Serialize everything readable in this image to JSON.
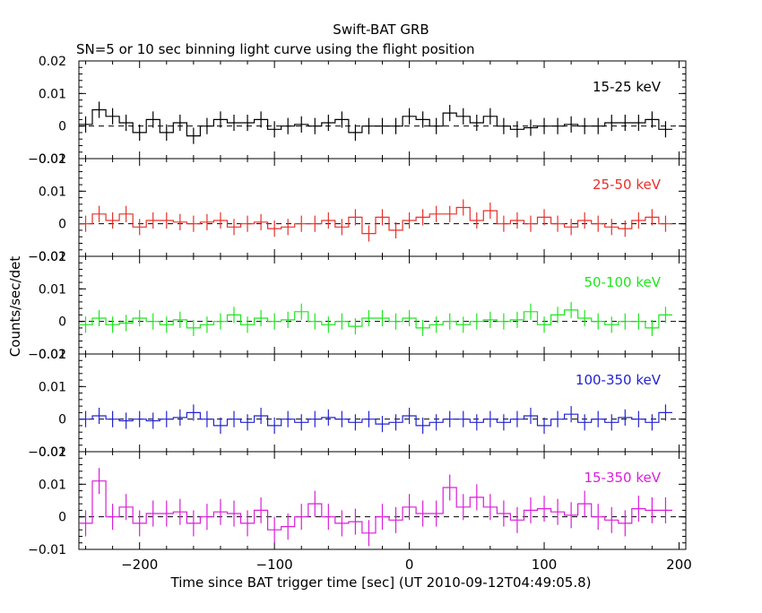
{
  "title": "Swift-BAT GRB",
  "subtitle": "SN=5 or 10 sec binning light curve using the flight position",
  "xlabel": "Time since BAT trigger time [sec] (UT 2010-09-12T04:49:05.8)",
  "ylabel": "Counts/sec/det",
  "chart_data": {
    "type": "line",
    "title": "Swift-BAT GRB",
    "subtitle": "SN=5 or 10 sec binning light curve using the flight position",
    "xlabel": "Time since BAT trigger time [sec] (UT 2010-09-12T04:49:05.8)",
    "ylabel": "Counts/sec/det",
    "xlim": [
      -245,
      205
    ],
    "x_ticks": [
      -200,
      -100,
      0,
      100,
      200
    ],
    "bin_width": 10,
    "x": [
      -240,
      -230,
      -220,
      -210,
      -200,
      -190,
      -180,
      -170,
      -160,
      -150,
      -140,
      -130,
      -120,
      -110,
      -100,
      -90,
      -80,
      -70,
      -60,
      -50,
      -40,
      -30,
      -20,
      -10,
      0,
      10,
      20,
      30,
      40,
      50,
      60,
      70,
      80,
      90,
      100,
      110,
      120,
      130,
      140,
      150,
      160,
      170,
      180,
      190
    ],
    "legend_position": "top-right",
    "baseline": 0,
    "series": [
      {
        "name": "15-25 keV",
        "color": "#000000",
        "ylim": [
          -0.01,
          0.02
        ],
        "y_ticks": [
          -0.01,
          0,
          0.01,
          0.02
        ],
        "y_tick_labels": [
          "−0.01",
          "0",
          "0.01",
          "0.02"
        ],
        "values": [
          0.0005,
          0.005,
          0.003,
          0.001,
          -0.002,
          0.002,
          -0.002,
          0.001,
          -0.003,
          0.0,
          0.002,
          0.001,
          0.001,
          0.002,
          -0.001,
          0.0,
          0.0005,
          0.0,
          0.001,
          0.002,
          -0.002,
          0.0,
          0.0,
          0.0,
          0.003,
          0.002,
          0.0,
          0.004,
          0.003,
          0.001,
          0.003,
          0.0,
          -0.001,
          -0.0005,
          0.0,
          0.0,
          0.0005,
          0.0,
          0.0,
          0.001,
          0.001,
          0.001,
          0.002,
          -0.001
        ],
        "error": 0.0025
      },
      {
        "name": "25-50 keV",
        "color": "#e8302a",
        "ylim": [
          -0.01,
          0.02
        ],
        "y_ticks": [
          -0.01,
          0,
          0.01,
          0.02
        ],
        "y_tick_labels": [
          "−0.01",
          "0",
          "0.01",
          "0.02"
        ],
        "values": [
          0.0,
          0.003,
          0.001,
          0.003,
          -0.001,
          0.001,
          0.001,
          0.0005,
          0.0,
          0.0005,
          0.001,
          -0.001,
          0.0,
          0.0005,
          -0.0015,
          -0.001,
          0.0,
          0.0,
          0.001,
          -0.001,
          0.002,
          -0.003,
          0.002,
          -0.002,
          0.001,
          0.002,
          0.003,
          0.003,
          0.005,
          0.001,
          0.004,
          0.0,
          0.001,
          0.0,
          0.002,
          0.0,
          -0.001,
          0.001,
          0.0,
          -0.001,
          -0.0015,
          0.001,
          0.002,
          0.0
        ],
        "error": 0.0025
      },
      {
        "name": "50-100 keV",
        "color": "#1ee61e",
        "ylim": [
          -0.01,
          0.02
        ],
        "y_ticks": [
          -0.01,
          0,
          0.01,
          0.02
        ],
        "y_tick_labels": [
          "−0.01",
          "0",
          "0.01",
          "0.02"
        ],
        "values": [
          -0.001,
          0.001,
          -0.001,
          -0.0005,
          0.001,
          0.0,
          -0.001,
          0.0005,
          -0.002,
          -0.001,
          0.0,
          0.002,
          -0.001,
          0.001,
          0.0,
          0.0005,
          0.003,
          0.0,
          -0.001,
          0.0,
          -0.0015,
          0.001,
          0.001,
          0.0,
          0.001,
          -0.002,
          -0.001,
          0.0,
          -0.001,
          0.0,
          0.0005,
          0.0,
          0.0005,
          0.003,
          -0.001,
          0.002,
          0.0035,
          0.001,
          0.0,
          -0.001,
          0.0,
          0.0,
          -0.002,
          0.002
        ],
        "error": 0.0025
      },
      {
        "name": "100-350 keV",
        "color": "#2323d2",
        "ylim": [
          -0.01,
          0.02
        ],
        "y_ticks": [
          -0.01,
          0,
          0.01,
          0.02
        ],
        "y_tick_labels": [
          "−0.01",
          "0",
          "0.01",
          "0.02"
        ],
        "values": [
          0.0,
          0.001,
          0.0,
          -0.0005,
          0.0,
          -0.0005,
          0.0,
          0.0005,
          0.002,
          0.0,
          -0.002,
          0.0,
          -0.001,
          0.001,
          -0.002,
          0.0,
          -0.001,
          0.0,
          0.0005,
          0.0,
          -0.001,
          0.0,
          -0.0015,
          -0.001,
          0.001,
          -0.002,
          -0.001,
          0.0,
          0.0,
          -0.001,
          0.0,
          -0.001,
          0.0,
          0.001,
          -0.002,
          0.0,
          0.0015,
          -0.001,
          0.0,
          -0.001,
          0.0005,
          0.0,
          -0.001,
          0.002
        ],
        "error": 0.0025
      },
      {
        "name": "15-350 keV",
        "color": "#d91ed9",
        "ylim": [
          -0.01,
          0.02
        ],
        "y_ticks": [
          -0.01,
          0,
          0.01,
          0.02
        ],
        "y_tick_labels": [
          "−0.01",
          "0",
          "0.01",
          "0.02"
        ],
        "values": [
          -0.002,
          0.011,
          0.0,
          0.003,
          -0.002,
          0.001,
          0.001,
          0.0015,
          -0.002,
          0.0,
          0.0015,
          0.001,
          -0.002,
          0.002,
          -0.004,
          -0.003,
          0.0,
          0.004,
          0.0,
          -0.002,
          -0.0015,
          -0.005,
          0.0,
          -0.001,
          0.003,
          0.001,
          0.001,
          0.009,
          0.003,
          0.006,
          0.003,
          0.001,
          -0.001,
          0.002,
          0.0025,
          0.0015,
          0.0005,
          0.004,
          0.0,
          -0.001,
          -0.002,
          0.0025,
          0.002,
          0.002
        ],
        "error": 0.004
      }
    ]
  }
}
